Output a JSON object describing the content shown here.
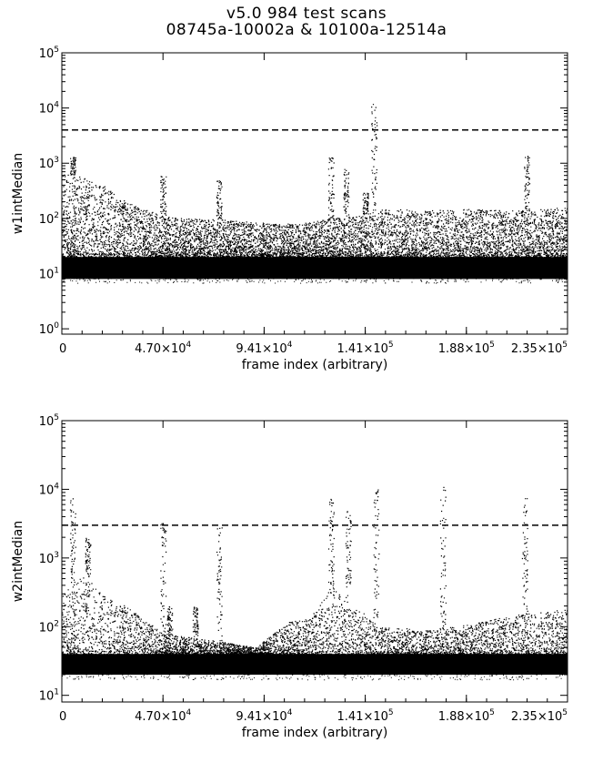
{
  "title_line1": "v5.0 984 test scans",
  "title_line2": "08745a-10002a & 10100a-12514a",
  "chart_data": [
    {
      "type": "scatter",
      "ylabel": "w1intMedian",
      "xlabel": "frame index (arbitrary)",
      "yscale": "log",
      "xlim": [
        0,
        235000
      ],
      "ylim": [
        0.8,
        100000
      ],
      "x_ticks": [
        "0",
        "4.70×10^4",
        "9.41×10^4",
        "1.41×10^5",
        "1.88×10^5",
        "2.35×10^5"
      ],
      "y_ticks": [
        "10^0",
        "10^1",
        "10^2",
        "10^3",
        "10^4",
        "10^5"
      ],
      "threshold": 4000,
      "band": [
        [
          0,
          8,
          700
        ],
        [
          10000,
          8,
          550
        ],
        [
          20000,
          8,
          400
        ],
        [
          30000,
          8,
          200
        ],
        [
          47000,
          8,
          110
        ],
        [
          60000,
          8,
          100
        ],
        [
          75000,
          8,
          95
        ],
        [
          90000,
          8,
          85
        ],
        [
          110000,
          8,
          80
        ],
        [
          125000,
          8,
          100
        ],
        [
          140000,
          8,
          120
        ],
        [
          150000,
          8,
          150
        ],
        [
          170000,
          8,
          140
        ],
        [
          190000,
          8,
          150
        ],
        [
          210000,
          8,
          140
        ],
        [
          235000,
          8,
          160
        ]
      ],
      "spikes": [
        [
          5000,
          1300
        ],
        [
          47000,
          600
        ],
        [
          73000,
          500
        ],
        [
          125000,
          1300
        ],
        [
          132000,
          800
        ],
        [
          141000,
          300
        ],
        [
          145000,
          12000
        ],
        [
          216000,
          1400
        ]
      ]
    },
    {
      "type": "scatter",
      "ylabel": "w2intMedian",
      "xlabel": "frame index (arbitrary)",
      "yscale": "log",
      "xlim": [
        0,
        235000
      ],
      "ylim": [
        8,
        100000
      ],
      "x_ticks": [
        "0",
        "4.70×10^4",
        "9.41×10^4",
        "1.41×10^5",
        "1.88×10^5",
        "2.35×10^5"
      ],
      "y_ticks": [
        "10^1",
        "10^2",
        "10^3",
        "10^4",
        "10^5"
      ],
      "threshold": 3000,
      "band": [
        [
          0,
          20,
          300
        ],
        [
          10000,
          20,
          600
        ],
        [
          20000,
          20,
          280
        ],
        [
          30000,
          20,
          200
        ],
        [
          47000,
          20,
          80
        ],
        [
          60000,
          20,
          70
        ],
        [
          75000,
          20,
          60
        ],
        [
          90000,
          20,
          50
        ],
        [
          105000,
          20,
          120
        ],
        [
          115000,
          20,
          130
        ],
        [
          125000,
          20,
          400
        ],
        [
          135000,
          20,
          200
        ],
        [
          150000,
          20,
          100
        ],
        [
          170000,
          20,
          90
        ],
        [
          190000,
          20,
          110
        ],
        [
          210000,
          20,
          150
        ],
        [
          235000,
          20,
          180
        ]
      ],
      "spikes": [
        [
          5000,
          7500
        ],
        [
          12000,
          2000
        ],
        [
          47000,
          3500
        ],
        [
          50000,
          200
        ],
        [
          62000,
          200
        ],
        [
          73000,
          2800
        ],
        [
          125000,
          7500
        ],
        [
          133000,
          5000
        ],
        [
          146000,
          10000
        ],
        [
          177000,
          11000
        ],
        [
          215000,
          8000
        ]
      ]
    }
  ]
}
